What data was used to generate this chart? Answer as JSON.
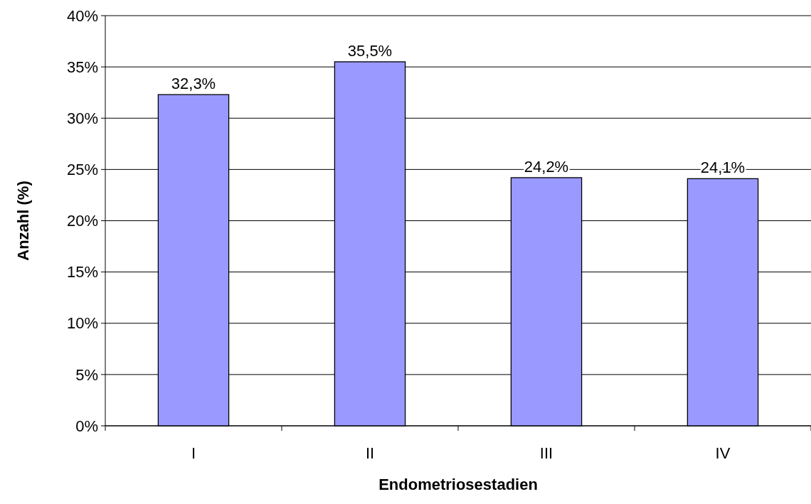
{
  "chart_data": {
    "type": "bar",
    "xlabel": "Endometriosestadien",
    "ylabel": "Anzahl (%)",
    "categories": [
      "I",
      "II",
      "III",
      "IV"
    ],
    "values": [
      32.3,
      35.5,
      24.2,
      24.1
    ],
    "value_labels": [
      "32,3%",
      "35,5%",
      "24,2%",
      "24,1%"
    ],
    "color": "#9999ff",
    "ylim": [
      0,
      40
    ],
    "yticks": [
      {
        "value": 0,
        "label": "0%"
      },
      {
        "value": 5,
        "label": "5%"
      },
      {
        "value": 10,
        "label": "10%"
      },
      {
        "value": 15,
        "label": "15%"
      },
      {
        "value": 20,
        "label": "20%"
      },
      {
        "value": 25,
        "label": "25%"
      },
      {
        "value": 30,
        "label": "30%"
      },
      {
        "value": 35,
        "label": "35%"
      },
      {
        "value": 40,
        "label": "40%"
      }
    ],
    "grid": "y"
  }
}
